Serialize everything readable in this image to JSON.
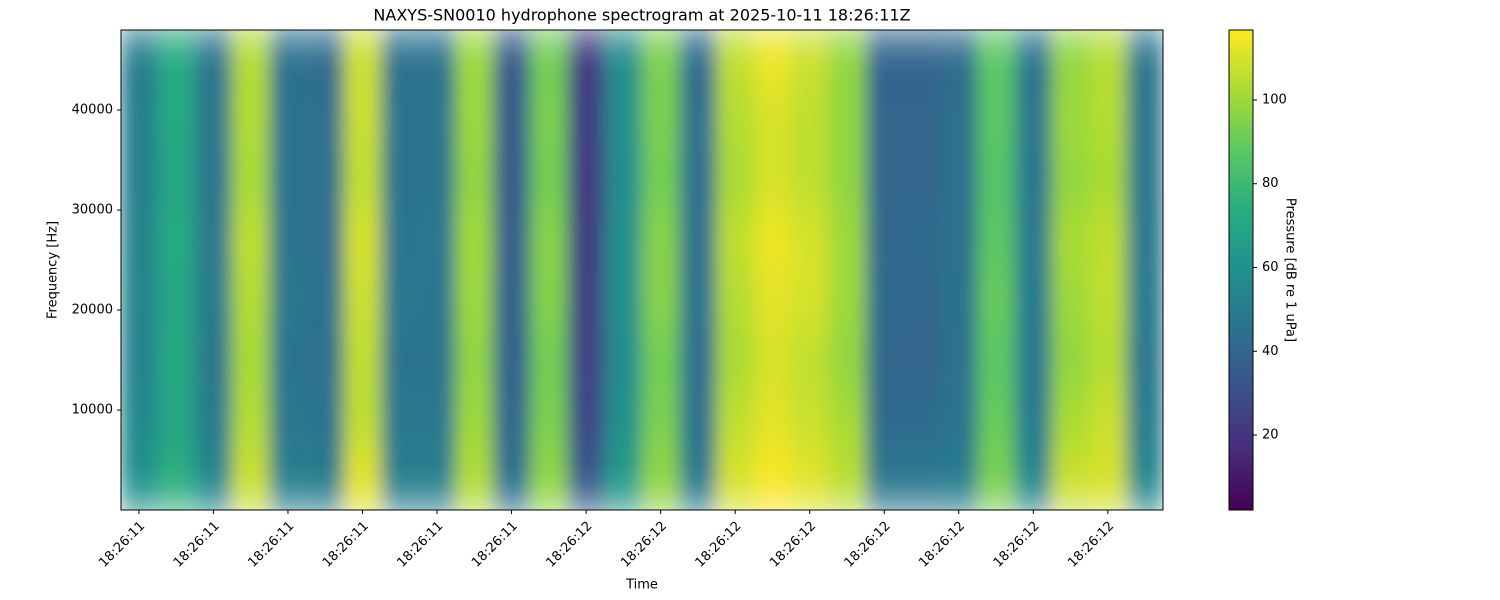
{
  "chart_data": {
    "type": "heatmap",
    "title": "NAXYS-SN0010 hydrophone spectrogram at 2025-10-11 18:26:11Z",
    "xlabel": "Time",
    "ylabel": "Frequency [Hz]",
    "colorbar_label": "Pressure [dB re 1 uPa]",
    "colormap": "viridis",
    "xlim": [
      -0.24,
      13.74
    ],
    "xticks": [
      {
        "value": 0,
        "label": "18:26:11"
      },
      {
        "value": 1,
        "label": "18:26:11"
      },
      {
        "value": 2,
        "label": "18:26:11"
      },
      {
        "value": 3,
        "label": "18:26:11"
      },
      {
        "value": 4,
        "label": "18:26:11"
      },
      {
        "value": 5,
        "label": "18:26:11"
      },
      {
        "value": 6,
        "label": "18:26:12"
      },
      {
        "value": 7,
        "label": "18:26:12"
      },
      {
        "value": 8,
        "label": "18:26:12"
      },
      {
        "value": 9,
        "label": "18:26:12"
      },
      {
        "value": 10,
        "label": "18:26:12"
      },
      {
        "value": 11,
        "label": "18:26:12"
      },
      {
        "value": 12,
        "label": "18:26:12"
      },
      {
        "value": 13,
        "label": "18:26:12"
      }
    ],
    "ylim": [
      0,
      48000
    ],
    "yticks": [
      10000,
      20000,
      30000,
      40000
    ],
    "clim": [
      2.1,
      116.7
    ],
    "cticks": [
      20,
      40,
      60,
      80,
      100
    ],
    "x": [
      0,
      0.5,
      1,
      1.5,
      2,
      2.5,
      3,
      3.5,
      4,
      4.5,
      5,
      5.5,
      6,
      6.5,
      7,
      7.5,
      8,
      8.5,
      9,
      9.5,
      10,
      10.5,
      11,
      11.5,
      12,
      12.5,
      13,
      13.5
    ],
    "y": [
      3000,
      9000,
      15000,
      21000,
      27000,
      33000,
      39000,
      45000
    ],
    "z": [
      [
        60,
        75,
        55,
        108,
        52,
        50,
        112,
        52,
        52,
        104,
        45,
        98,
        35,
        65,
        98,
        50,
        110,
        116,
        112,
        105,
        48,
        48,
        50,
        94,
        55,
        108,
        110,
        55
      ],
      [
        56,
        70,
        50,
        104,
        48,
        46,
        106,
        48,
        48,
        100,
        40,
        94,
        27,
        60,
        94,
        45,
        106,
        112,
        108,
        102,
        42,
        42,
        46,
        90,
        50,
        102,
        108,
        50
      ],
      [
        52,
        72,
        48,
        102,
        46,
        44,
        106,
        46,
        46,
        98,
        38,
        92,
        25,
        58,
        92,
        44,
        102,
        110,
        106,
        98,
        40,
        40,
        44,
        88,
        48,
        98,
        104,
        48
      ],
      [
        54,
        70,
        50,
        104,
        48,
        45,
        108,
        48,
        47,
        100,
        38,
        95,
        24,
        60,
        96,
        45,
        104,
        112,
        110,
        100,
        42,
        41,
        45,
        90,
        50,
        100,
        106,
        50
      ],
      [
        53,
        73,
        49,
        106,
        47,
        44,
        110,
        47,
        48,
        101,
        37,
        96,
        23,
        60,
        96,
        44,
        106,
        114,
        110,
        100,
        41,
        42,
        44,
        88,
        49,
        102,
        106,
        49
      ],
      [
        52,
        70,
        48,
        102,
        46,
        44,
        106,
        46,
        46,
        98,
        35,
        92,
        22,
        58,
        92,
        44,
        102,
        110,
        106,
        98,
        40,
        40,
        44,
        86,
        48,
        98,
        102,
        48
      ],
      [
        52,
        72,
        48,
        104,
        46,
        44,
        108,
        46,
        46,
        100,
        36,
        94,
        23,
        60,
        94,
        44,
        104,
        110,
        106,
        98,
        40,
        40,
        44,
        88,
        48,
        100,
        104,
        48
      ],
      [
        50,
        72,
        47,
        104,
        45,
        43,
        108,
        45,
        45,
        100,
        35,
        92,
        22,
        58,
        94,
        43,
        106,
        114,
        108,
        98,
        39,
        39,
        43,
        88,
        47,
        98,
        104,
        47
      ]
    ]
  }
}
